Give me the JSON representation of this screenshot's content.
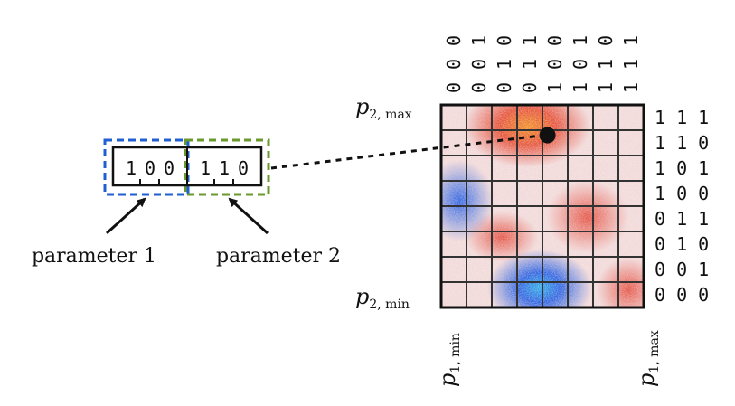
{
  "genome": {
    "param1_bits": [
      "1",
      "0",
      "0"
    ],
    "param2_bits": [
      "1",
      "1",
      "0"
    ],
    "param1_label": "parameter 1",
    "param2_label": "parameter 2",
    "param1_color": "#1f5fd1",
    "param2_color": "#6a9a2e"
  },
  "grid": {
    "p2_max": "p",
    "p2_max_sub": "2, max",
    "p2_min": "p",
    "p2_min_sub": "2, min",
    "p1_min": "p",
    "p1_min_sub": "1, min",
    "p1_max": "p",
    "p1_max_sub": "1, max",
    "column_codes": [
      "000",
      "001",
      "010",
      "011",
      "100",
      "101",
      "110",
      "111"
    ],
    "row_codes": [
      "111",
      "110",
      "101",
      "100",
      "011",
      "010",
      "001",
      "000"
    ],
    "highlight_cell": {
      "col_code": "100",
      "row_code": "110"
    },
    "heatmap_colors": {
      "red": "#e0301e",
      "orange": "#f08a1a",
      "blue": "#1a55e0",
      "cyan": "#25a8e8",
      "background": "#f4e3e3"
    }
  }
}
